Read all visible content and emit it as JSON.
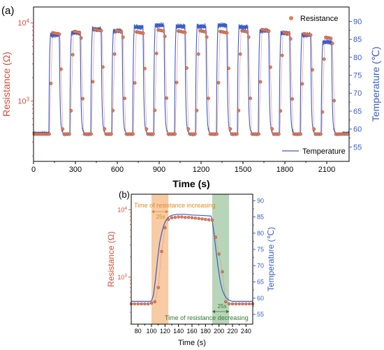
{
  "colors": {
    "resistance": "#d4503e",
    "resistance_fill": "#e07b5c",
    "temperature": "#3a5cc6",
    "axis": "#000000",
    "span_rise": "#f0a05a",
    "span_fall": "#7fb27f",
    "span_rise_text": "#e08a20",
    "span_fall_text": "#2d7a2d"
  },
  "chart_data": [
    {
      "panel_label": "(a)",
      "type": "line",
      "xlabel": "Time (s)",
      "ylabel_left": "Resistance (Ω)",
      "ylabel_right": "Temperature (℃)",
      "xlim": [
        0,
        2260
      ],
      "ylim_left": [
        170,
        16000
      ],
      "yscale_left": "log",
      "ylim_right": [
        51,
        94
      ],
      "x_ticks": [
        0,
        300,
        600,
        900,
        1200,
        1500,
        1800,
        2100
      ],
      "x_tick_labels": [
        "0",
        "300",
        "600",
        "900",
        "1200",
        "1500",
        "1800",
        "2100"
      ],
      "y_left_tick_labels": [
        {
          "base": "10",
          "exp": "3",
          "value": 1000
        },
        {
          "base": "10",
          "exp": "4",
          "value": 10000
        }
      ],
      "y_right_ticks": [
        55,
        60,
        65,
        70,
        75,
        80,
        85,
        90
      ],
      "y_right_tick_labels": [
        "55",
        "60",
        "65",
        "70",
        "75",
        "80",
        "85",
        "90"
      ],
      "legend": {
        "resistance": "Resistance",
        "temperature": "Temperature"
      },
      "cycle_period_s": 150,
      "cycles": 14,
      "series": [
        {
          "name": "Resistance",
          "unit": "Ω",
          "low": 380,
          "high": [
            7500,
            7800,
            8300,
            8000,
            7700,
            8200,
            7900,
            8000,
            7800,
            8000,
            8200,
            7600,
            7300,
            6600
          ]
        },
        {
          "name": "Temperature",
          "unit": "℃",
          "low": 59,
          "high": [
            86.2,
            86.8,
            87.8,
            87.3,
            88.4,
            88.9,
            88.6,
            88.6,
            88.9,
            88.4,
            87.4,
            86.7,
            86.2,
            84.2
          ]
        }
      ]
    },
    {
      "panel_label": "(b)",
      "type": "line",
      "xlabel": "Time (s)",
      "ylabel_left": "Resistance (Ω)",
      "ylabel_right": "Temperature (℃)",
      "xlim": [
        70,
        250
      ],
      "ylim_left": [
        200,
        17000
      ],
      "yscale_left": "log",
      "ylim_right": [
        52,
        92
      ],
      "x_ticks": [
        80,
        100,
        120,
        140,
        160,
        180,
        200,
        220,
        240
      ],
      "x_tick_labels": [
        "80",
        "100",
        "120",
        "140",
        "160",
        "180",
        "200",
        "220",
        "240"
      ],
      "y_left_tick_labels": [
        {
          "base": "10",
          "exp": "3",
          "value": 1000
        },
        {
          "base": "10",
          "exp": "4",
          "value": 10000
        }
      ],
      "y_right_ticks": [
        55,
        60,
        65,
        70,
        75,
        80,
        85,
        90
      ],
      "y_right_tick_labels": [
        "55",
        "60",
        "65",
        "70",
        "75",
        "80",
        "85",
        "90"
      ],
      "spans": [
        {
          "x0": 100,
          "x1": 125,
          "label": "Time of resistance increasing",
          "duration": "25s"
        },
        {
          "x0": 190,
          "x1": 215,
          "label": "Time of resistance decreasing",
          "duration": "25s"
        }
      ],
      "series": [
        {
          "name": "Resistance",
          "x": [
            70,
            75,
            80,
            85,
            90,
            95,
            100,
            105,
            110,
            115,
            120,
            125,
            130,
            135,
            140,
            145,
            150,
            155,
            160,
            165,
            170,
            175,
            180,
            185,
            190,
            195,
            200,
            205,
            210,
            215,
            220,
            225,
            230,
            235,
            240,
            245,
            250
          ],
          "y": [
            400,
            400,
            400,
            400,
            400,
            400,
            410,
            430,
            700,
            2400,
            5400,
            7200,
            7600,
            7700,
            7800,
            7800,
            7700,
            7700,
            7600,
            7500,
            7400,
            7300,
            7200,
            7100,
            7000,
            3900,
            2200,
            1200,
            430,
            400,
            400,
            400,
            400,
            400,
            400,
            400,
            400
          ]
        },
        {
          "name": "Temperature",
          "x": [
            70,
            98,
            100,
            103,
            106,
            109,
            112,
            115,
            118,
            121,
            124,
            127,
            130,
            135,
            140,
            150,
            160,
            170,
            180,
            188,
            190,
            193,
            196,
            199,
            202,
            205,
            208,
            211,
            214,
            217,
            220,
            225,
            235,
            250
          ],
          "y": [
            59,
            59,
            59.2,
            61,
            66,
            72,
            77,
            80,
            82.3,
            83.8,
            84.7,
            85.2,
            85.5,
            85.7,
            85.8,
            85.8,
            85.6,
            85.5,
            85.4,
            85.3,
            84,
            79,
            74,
            69,
            65,
            62.5,
            61,
            60,
            59.5,
            59.2,
            59,
            59,
            59,
            59
          ]
        }
      ]
    }
  ]
}
